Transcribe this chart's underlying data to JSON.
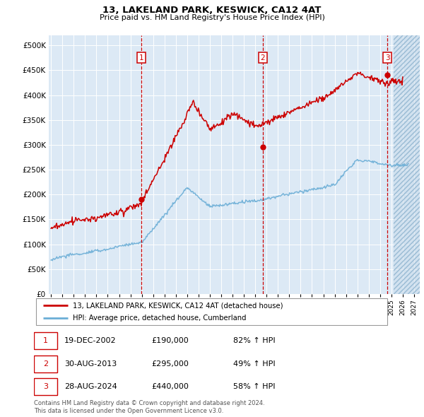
{
  "title": "13, LAKELAND PARK, KESWICK, CA12 4AT",
  "subtitle": "Price paid vs. HM Land Registry's House Price Index (HPI)",
  "yticks": [
    0,
    50000,
    100000,
    150000,
    200000,
    250000,
    300000,
    350000,
    400000,
    450000,
    500000
  ],
  "ylim": [
    0,
    520000
  ],
  "xlim_start": 1994.8,
  "xlim_end": 2027.5,
  "hpi_color": "#6baed6",
  "price_color": "#cc0000",
  "background_color": "#dce9f5",
  "vline_color": "#cc0000",
  "transactions": [
    {
      "date_num": 2002.97,
      "price": 190000,
      "label": "1"
    },
    {
      "date_num": 2013.66,
      "price": 295000,
      "label": "2"
    },
    {
      "date_num": 2024.66,
      "price": 440000,
      "label": "3"
    }
  ],
  "legend_property_label": "13, LAKELAND PARK, KESWICK, CA12 4AT (detached house)",
  "legend_hpi_label": "HPI: Average price, detached house, Cumberland",
  "table_rows": [
    {
      "num": "1",
      "date": "19-DEC-2002",
      "price": "£190,000",
      "change": "82% ↑ HPI"
    },
    {
      "num": "2",
      "date": "30-AUG-2013",
      "price": "£295,000",
      "change": "49% ↑ HPI"
    },
    {
      "num": "3",
      "date": "28-AUG-2024",
      "price": "£440,000",
      "change": "58% ↑ HPI"
    }
  ],
  "footnote": "Contains HM Land Registry data © Crown copyright and database right 2024.\nThis data is licensed under the Open Government Licence v3.0."
}
